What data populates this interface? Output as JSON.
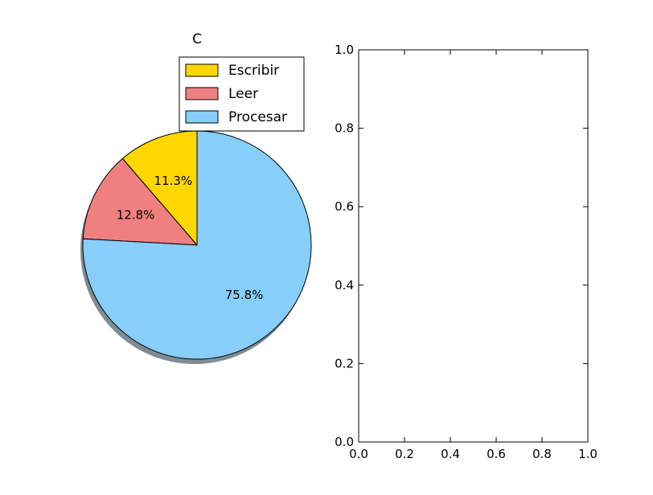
{
  "chart_data": [
    {
      "type": "pie",
      "title": "C",
      "categories": [
        "Escribir",
        "Leer",
        "Procesar"
      ],
      "values": [
        11.3,
        12.8,
        75.8
      ],
      "labels": [
        "11.3%",
        "12.8%",
        "75.8%"
      ],
      "colors": [
        "#FFD700",
        "#F08080",
        "#87CEFA"
      ],
      "start_angle_deg": 90,
      "shadow": true,
      "legend": {
        "placement": "top-right",
        "entries": [
          "Escribir",
          "Leer",
          "Procesar"
        ]
      }
    },
    {
      "type": "line",
      "title": "",
      "xlabel": "",
      "ylabel": "",
      "series": [],
      "xlim": [
        0.0,
        1.0
      ],
      "ylim": [
        0.0,
        1.0
      ],
      "xticks": [
        "0.0",
        "0.2",
        "0.4",
        "0.6",
        "0.8",
        "1.0"
      ],
      "yticks": [
        "0.0",
        "0.2",
        "0.4",
        "0.6",
        "0.8",
        "1.0"
      ],
      "grid": false
    }
  ]
}
